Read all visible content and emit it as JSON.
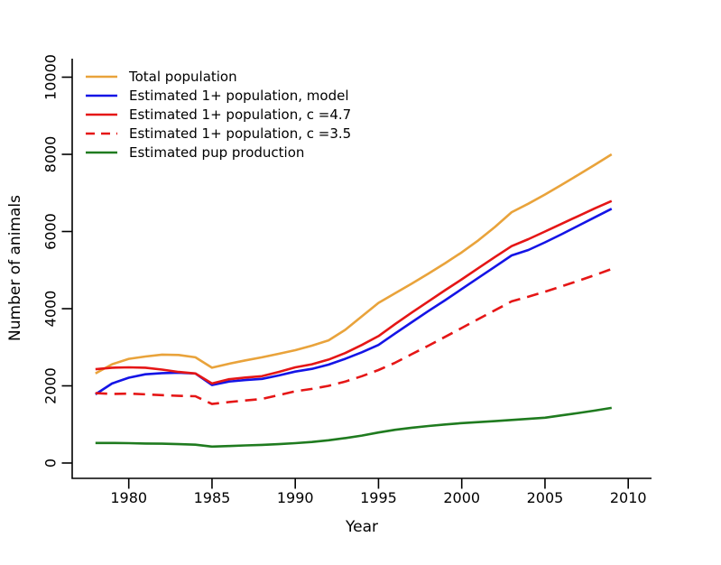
{
  "background": "#ffffff",
  "axis_color": "#000000",
  "chart_data": {
    "type": "line",
    "title": "",
    "xlabel": "Year",
    "ylabel": "Number of animals",
    "xlim": [
      1977,
      2011
    ],
    "ylim": [
      0,
      10000
    ],
    "x_ticks": [
      1980,
      1985,
      1990,
      1995,
      2000,
      2005,
      2010
    ],
    "y_ticks": [
      0,
      2000,
      4000,
      6000,
      8000,
      10000
    ],
    "grid": false,
    "legend_position": "top-left",
    "legend_box": false,
    "x": [
      1978,
      1979,
      1980,
      1981,
      1982,
      1983,
      1984,
      1985,
      1986,
      1987,
      1988,
      1989,
      1990,
      1991,
      1992,
      1993,
      1994,
      1995,
      1996,
      1997,
      1998,
      1999,
      2000,
      2001,
      2002,
      2003,
      2004,
      2005,
      2006,
      2007,
      2008,
      2009
    ],
    "series": [
      {
        "name": "Total population",
        "color": "#E9A33B",
        "dash": "solid",
        "values": [
          2320,
          2560,
          2700,
          2760,
          2810,
          2800,
          2740,
          2470,
          2570,
          2660,
          2740,
          2830,
          2925,
          3040,
          3180,
          3450,
          3800,
          4150,
          4400,
          4650,
          4910,
          5180,
          5460,
          5770,
          6120,
          6500,
          6720,
          6960,
          7210,
          7470,
          7730,
          8000
        ]
      },
      {
        "name": "Estimated 1+ population, model",
        "color": "#1414E6",
        "dash": "solid",
        "values": [
          1780,
          2060,
          2210,
          2300,
          2330,
          2340,
          2320,
          2020,
          2110,
          2150,
          2180,
          2270,
          2370,
          2440,
          2550,
          2700,
          2870,
          3060,
          3360,
          3650,
          3940,
          4220,
          4510,
          4800,
          5090,
          5380,
          5520,
          5720,
          5930,
          6150,
          6370,
          6590
        ]
      },
      {
        "name": "Estimated 1+ population, c =4.7",
        "color": "#E51616",
        "dash": "solid",
        "values": [
          2430,
          2470,
          2480,
          2470,
          2420,
          2360,
          2320,
          2060,
          2170,
          2215,
          2250,
          2360,
          2480,
          2560,
          2680,
          2850,
          3060,
          3290,
          3600,
          3900,
          4190,
          4480,
          4760,
          5050,
          5340,
          5620,
          5800,
          6000,
          6200,
          6400,
          6600,
          6790
        ]
      },
      {
        "name": "Estimated 1+ population, c =3.5",
        "color": "#E51616",
        "dash": "dashed",
        "values": [
          1810,
          1790,
          1800,
          1780,
          1760,
          1740,
          1730,
          1530,
          1580,
          1620,
          1660,
          1760,
          1860,
          1920,
          2000,
          2110,
          2250,
          2410,
          2600,
          2820,
          3040,
          3270,
          3500,
          3730,
          3960,
          4190,
          4310,
          4440,
          4580,
          4720,
          4870,
          5030
        ]
      },
      {
        "name": "Estimated pup production",
        "color": "#1F7B1F",
        "dash": "solid",
        "values": [
          520,
          520,
          515,
          505,
          500,
          490,
          475,
          425,
          440,
          455,
          470,
          490,
          515,
          545,
          590,
          645,
          710,
          790,
          860,
          915,
          960,
          1000,
          1035,
          1060,
          1085,
          1115,
          1145,
          1175,
          1235,
          1295,
          1360,
          1430
        ]
      }
    ]
  }
}
